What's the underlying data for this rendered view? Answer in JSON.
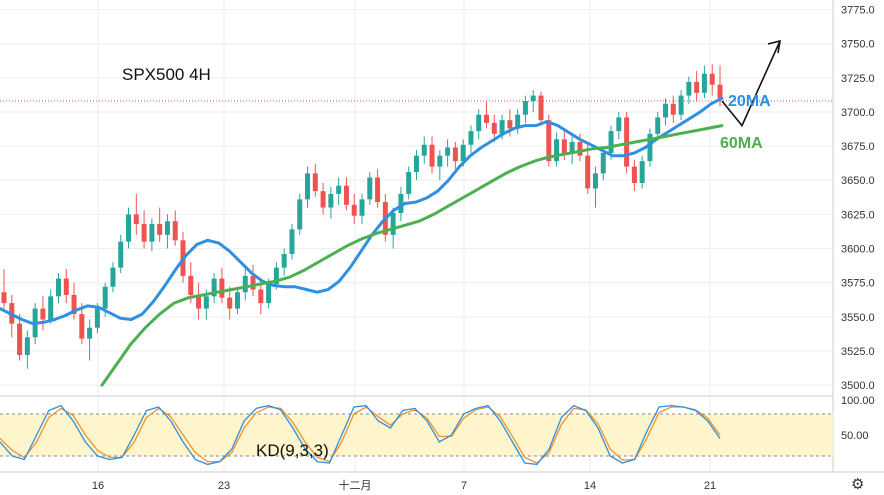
{
  "chart_data": [
    {
      "type": "candlestick",
      "title": "SPX500 4H",
      "ylim": [
        3492,
        3782
      ],
      "y_ticks": [
        "3500.0",
        "3525.0",
        "3550.0",
        "3575.0",
        "3600.0",
        "3625.0",
        "3650.0",
        "3675.0",
        "3700.0",
        "3725.0",
        "3750.0",
        "3775.0"
      ],
      "x_ticks": [
        "16",
        "23",
        "十二月",
        "7",
        "14",
        "21"
      ],
      "current_price_level": 3708,
      "colors": {
        "up": "#26a69a",
        "down": "#ef5350",
        "ma20": "#2f8fe0",
        "ma60": "#4caf50",
        "grid": "#eeeeee"
      },
      "annotations": {
        "ma20_label": "20MA",
        "ma60_label": "60MA"
      },
      "forecast_arrow": [
        3708,
        3690,
        3752
      ],
      "candles": [
        [
          3568,
          3585,
          3556,
          3560
        ],
        [
          3560,
          3566,
          3535,
          3545
        ],
        [
          3545,
          3552,
          3518,
          3522
        ],
        [
          3522,
          3540,
          3512,
          3535
        ],
        [
          3535,
          3560,
          3530,
          3556
        ],
        [
          3556,
          3565,
          3540,
          3548
        ],
        [
          3548,
          3570,
          3545,
          3565
        ],
        [
          3565,
          3582,
          3560,
          3578
        ],
        [
          3578,
          3585,
          3560,
          3566
        ],
        [
          3566,
          3575,
          3548,
          3552
        ],
        [
          3552,
          3560,
          3530,
          3534
        ],
        [
          3534,
          3548,
          3518,
          3542
        ],
        [
          3542,
          3560,
          3538,
          3556
        ],
        [
          3556,
          3575,
          3550,
          3572
        ],
        [
          3572,
          3590,
          3568,
          3586
        ],
        [
          3586,
          3610,
          3582,
          3605
        ],
        [
          3605,
          3630,
          3600,
          3625
        ],
        [
          3625,
          3640,
          3610,
          3618
        ],
        [
          3618,
          3628,
          3600,
          3605
        ],
        [
          3605,
          3622,
          3598,
          3618
        ],
        [
          3618,
          3630,
          3605,
          3610
        ],
        [
          3610,
          3625,
          3600,
          3620
        ],
        [
          3620,
          3628,
          3602,
          3606
        ],
        [
          3606,
          3612,
          3575,
          3580
        ],
        [
          3580,
          3590,
          3560,
          3566
        ],
        [
          3566,
          3575,
          3548,
          3556
        ],
        [
          3556,
          3570,
          3548,
          3565
        ],
        [
          3565,
          3582,
          3560,
          3578
        ],
        [
          3578,
          3586,
          3560,
          3564
        ],
        [
          3564,
          3572,
          3548,
          3556
        ],
        [
          3556,
          3572,
          3552,
          3568
        ],
        [
          3568,
          3585,
          3562,
          3580
        ],
        [
          3580,
          3588,
          3565,
          3570
        ],
        [
          3570,
          3578,
          3552,
          3560
        ],
        [
          3560,
          3578,
          3556,
          3574
        ],
        [
          3574,
          3590,
          3570,
          3586
        ],
        [
          3586,
          3600,
          3580,
          3596
        ],
        [
          3596,
          3618,
          3592,
          3614
        ],
        [
          3614,
          3640,
          3610,
          3636
        ],
        [
          3636,
          3660,
          3630,
          3655
        ],
        [
          3655,
          3662,
          3638,
          3642
        ],
        [
          3642,
          3648,
          3625,
          3630
        ],
        [
          3630,
          3645,
          3622,
          3640
        ],
        [
          3640,
          3652,
          3632,
          3646
        ],
        [
          3646,
          3652,
          3628,
          3632
        ],
        [
          3632,
          3640,
          3618,
          3624
        ],
        [
          3624,
          3640,
          3618,
          3636
        ],
        [
          3636,
          3656,
          3632,
          3652
        ],
        [
          3652,
          3658,
          3630,
          3634
        ],
        [
          3634,
          3640,
          3605,
          3610
        ],
        [
          3610,
          3630,
          3600,
          3626
        ],
        [
          3626,
          3645,
          3620,
          3640
        ],
        [
          3640,
          3660,
          3636,
          3656
        ],
        [
          3656,
          3672,
          3650,
          3668
        ],
        [
          3668,
          3682,
          3662,
          3676
        ],
        [
          3676,
          3682,
          3655,
          3660
        ],
        [
          3660,
          3672,
          3650,
          3668
        ],
        [
          3668,
          3680,
          3660,
          3674
        ],
        [
          3674,
          3678,
          3658,
          3664
        ],
        [
          3664,
          3680,
          3660,
          3676
        ],
        [
          3676,
          3690,
          3670,
          3686
        ],
        [
          3686,
          3702,
          3680,
          3698
        ],
        [
          3698,
          3708,
          3688,
          3692
        ],
        [
          3692,
          3698,
          3678,
          3684
        ],
        [
          3684,
          3698,
          3680,
          3694
        ],
        [
          3694,
          3702,
          3682,
          3688
        ],
        [
          3688,
          3702,
          3684,
          3698
        ],
        [
          3698,
          3712,
          3692,
          3708
        ],
        [
          3708,
          3716,
          3700,
          3712
        ],
        [
          3712,
          3715,
          3690,
          3694
        ],
        [
          3694,
          3698,
          3660,
          3664
        ],
        [
          3664,
          3685,
          3660,
          3680
        ],
        [
          3680,
          3688,
          3665,
          3670
        ],
        [
          3670,
          3682,
          3662,
          3678
        ],
        [
          3678,
          3684,
          3664,
          3668
        ],
        [
          3668,
          3676,
          3640,
          3644
        ],
        [
          3644,
          3660,
          3630,
          3655
        ],
        [
          3655,
          3675,
          3650,
          3670
        ],
        [
          3670,
          3690,
          3665,
          3686
        ],
        [
          3686,
          3700,
          3680,
          3696
        ],
        [
          3696,
          3700,
          3655,
          3660
        ],
        [
          3660,
          3665,
          3642,
          3648
        ],
        [
          3648,
          3668,
          3644,
          3664
        ],
        [
          3664,
          3688,
          3660,
          3684
        ],
        [
          3684,
          3700,
          3680,
          3696
        ],
        [
          3696,
          3710,
          3690,
          3706
        ],
        [
          3706,
          3712,
          3692,
          3698
        ],
        [
          3698,
          3716,
          3694,
          3712
        ],
        [
          3712,
          3726,
          3706,
          3722
        ],
        [
          3722,
          3730,
          3708,
          3714
        ],
        [
          3714,
          3734,
          3710,
          3728
        ],
        [
          3728,
          3735,
          3712,
          3720
        ],
        [
          3720,
          3734,
          3704,
          3710
        ]
      ],
      "ma20": [
        3556,
        3552,
        3548,
        3545,
        3546,
        3548,
        3551,
        3555,
        3558,
        3557,
        3553,
        3549,
        3548,
        3552,
        3561,
        3572,
        3584,
        3595,
        3603,
        3606,
        3604,
        3598,
        3590,
        3582,
        3576,
        3573,
        3572,
        3572,
        3570,
        3568,
        3570,
        3576,
        3586,
        3598,
        3610,
        3620,
        3628,
        3633,
        3634,
        3637,
        3642,
        3650,
        3660,
        3668,
        3674,
        3679,
        3684,
        3688,
        3690,
        3690,
        3693,
        3690,
        3685,
        3680,
        3676,
        3672,
        3668,
        3668,
        3670,
        3674,
        3680,
        3685,
        3690,
        3695,
        3700,
        3706,
        3710
      ],
      "ma60": [
        3500,
        3515,
        3530,
        3542,
        3552,
        3560,
        3564,
        3566,
        3568,
        3570,
        3572,
        3574,
        3576,
        3579,
        3584,
        3590,
        3596,
        3602,
        3607,
        3611,
        3614,
        3617,
        3620,
        3625,
        3631,
        3637,
        3643,
        3649,
        3655,
        3660,
        3664,
        3667,
        3669,
        3671,
        3673,
        3674,
        3676,
        3678,
        3680,
        3682,
        3684,
        3686,
        3688,
        3690
      ],
      "series": [
        {
          "name": "20MA"
        },
        {
          "name": "60MA"
        }
      ]
    },
    {
      "type": "line",
      "label": "KD(9,3,3)",
      "ylim": [
        0,
        100
      ],
      "y_ticks": [
        "100.00",
        "50.00"
      ],
      "band": [
        20,
        80
      ],
      "colors": {
        "k": "#2f8fe0",
        "d": "#f0922b",
        "band": "#fff5cc"
      },
      "k": [
        40,
        20,
        15,
        50,
        85,
        92,
        70,
        40,
        20,
        15,
        18,
        50,
        85,
        90,
        70,
        40,
        15,
        8,
        12,
        30,
        70,
        88,
        92,
        86,
        60,
        30,
        12,
        10,
        50,
        90,
        92,
        70,
        60,
        85,
        88,
        70,
        40,
        50,
        80,
        88,
        92,
        70,
        40,
        10,
        8,
        30,
        75,
        92,
        85,
        60,
        20,
        10,
        15,
        55,
        90,
        92,
        90,
        85,
        70,
        45
      ],
      "d": [
        45,
        28,
        18,
        40,
        75,
        88,
        78,
        50,
        28,
        18,
        18,
        40,
        75,
        88,
        76,
        50,
        25,
        12,
        12,
        25,
        60,
        82,
        90,
        88,
        68,
        40,
        18,
        12,
        40,
        80,
        90,
        76,
        64,
        80,
        86,
        74,
        48,
        48,
        74,
        86,
        90,
        76,
        48,
        18,
        10,
        25,
        65,
        88,
        86,
        66,
        30,
        14,
        15,
        45,
        82,
        90,
        90,
        86,
        74,
        50
      ]
    }
  ]
}
